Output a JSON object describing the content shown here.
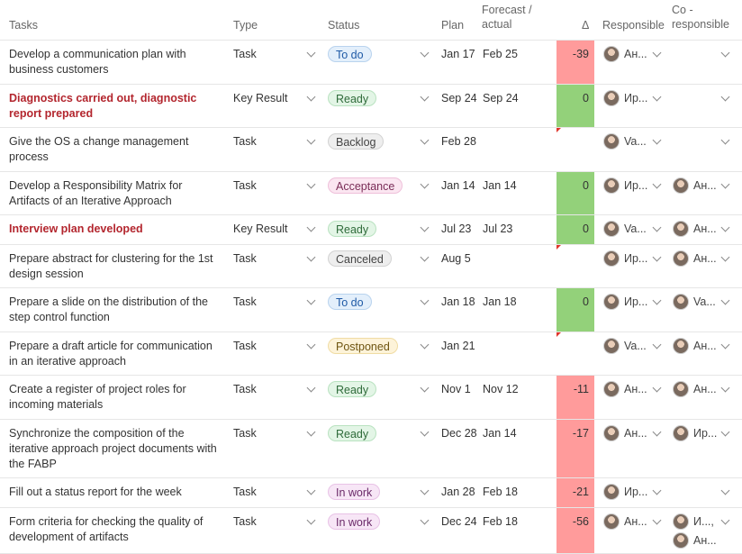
{
  "header": {
    "tasks": "Tasks",
    "type": "Type",
    "status": "Status",
    "plan": "Plan",
    "forecast": "Forecast / actual",
    "delta": "Δ",
    "responsible": "Responsible",
    "co_responsible": "Co - responsible"
  },
  "colors": {
    "delta_negative": "#ff9b9b",
    "delta_zero": "#93d17a",
    "key_result_text": "#b3262e"
  },
  "rows": [
    {
      "task": "Develop a communication plan with business customers",
      "key_result": false,
      "type": "Task",
      "status": "To do",
      "status_style": "todo",
      "plan": "Jan 17",
      "actual": "Feb 25",
      "delta": "-39",
      "delta_color": "red",
      "responsible": [
        "Ан..."
      ],
      "co_responsible": []
    },
    {
      "task": "Diagnostics carried out, diagnostic report prepared",
      "key_result": true,
      "type": "Key Result",
      "status": "Ready",
      "status_style": "ready",
      "plan": "Sep 24",
      "actual": "Sep 24",
      "delta": "0",
      "delta_color": "green",
      "responsible": [
        "Ир..."
      ],
      "co_responsible": []
    },
    {
      "task": "Give the OS a change management process",
      "key_result": false,
      "type": "Task",
      "status": "Backlog",
      "status_style": "backlog",
      "plan": "Feb 28",
      "actual": "",
      "delta": "",
      "delta_color": "",
      "marker": true,
      "responsible": [
        "Va..."
      ],
      "co_responsible": []
    },
    {
      "task": "Develop a Responsibility Matrix for Artifacts of an Iterative Approach",
      "key_result": false,
      "type": "Task",
      "status": "Acceptance",
      "status_style": "acceptance",
      "plan": "Jan 14",
      "actual": "Jan 14",
      "delta": "0",
      "delta_color": "green",
      "responsible": [
        "Ир..."
      ],
      "co_responsible": [
        "Ан..."
      ]
    },
    {
      "task": "Interview plan developed",
      "key_result": true,
      "type": "Key Result",
      "status": "Ready",
      "status_style": "ready",
      "plan": "Jul 23",
      "actual": "Jul 23",
      "delta": "0",
      "delta_color": "green",
      "responsible": [
        "Va..."
      ],
      "co_responsible": [
        "Ан..."
      ]
    },
    {
      "task": "Prepare abstract for clustering for the 1st design session",
      "key_result": false,
      "type": "Task",
      "status": "Canceled",
      "status_style": "canceled",
      "plan": "Aug 5",
      "actual": "",
      "delta": "",
      "delta_color": "",
      "marker": true,
      "responsible": [
        "Ир..."
      ],
      "co_responsible": [
        "Ан..."
      ]
    },
    {
      "task": "Prepare a slide on the distribution of the step control function",
      "key_result": false,
      "type": "Task",
      "status": "To do",
      "status_style": "todo",
      "plan": "Jan 18",
      "actual": "Jan 18",
      "delta": "0",
      "delta_color": "green",
      "responsible": [
        "Ир..."
      ],
      "co_responsible": [
        "Va..."
      ]
    },
    {
      "task": "Prepare a draft article for communication in an iterative approach",
      "key_result": false,
      "type": "Task",
      "status": "Postponed",
      "status_style": "postponed",
      "plan": "Jan 21",
      "actual": "",
      "delta": "",
      "delta_color": "",
      "marker": true,
      "responsible": [
        "Va..."
      ],
      "co_responsible": [
        "Ан..."
      ]
    },
    {
      "task": "Create a register of project roles for incoming materials",
      "key_result": false,
      "type": "Task",
      "status": "Ready",
      "status_style": "ready",
      "plan": "Nov 1",
      "actual": "Nov 12",
      "delta": "-11",
      "delta_color": "red",
      "responsible": [
        "Ан..."
      ],
      "co_responsible": [
        "Ан..."
      ]
    },
    {
      "task": "Synchronize the composition of the iterative approach project documents with the FABP",
      "key_result": false,
      "type": "Task",
      "status": "Ready",
      "status_style": "ready",
      "plan": "Dec 28",
      "actual": "Jan 14",
      "delta": "-17",
      "delta_color": "red",
      "responsible": [
        "Ан..."
      ],
      "co_responsible": [
        "Ир..."
      ]
    },
    {
      "task": "Fill out a status report for the week",
      "key_result": false,
      "type": "Task",
      "status": "In work",
      "status_style": "inwork",
      "plan": "Jan 28",
      "actual": "Feb 18",
      "delta": "-21",
      "delta_color": "red",
      "responsible": [
        "Ир..."
      ],
      "co_responsible": []
    },
    {
      "task": "Form criteria for checking the quality of development of artifacts",
      "key_result": false,
      "type": "Task",
      "status": "In work",
      "status_style": "inwork",
      "plan": "Dec 24",
      "actual": "Feb 18",
      "delta": "-56",
      "delta_color": "red",
      "responsible": [
        "Ан..."
      ],
      "co_responsible": [
        "И...,",
        "Ан..."
      ]
    }
  ]
}
